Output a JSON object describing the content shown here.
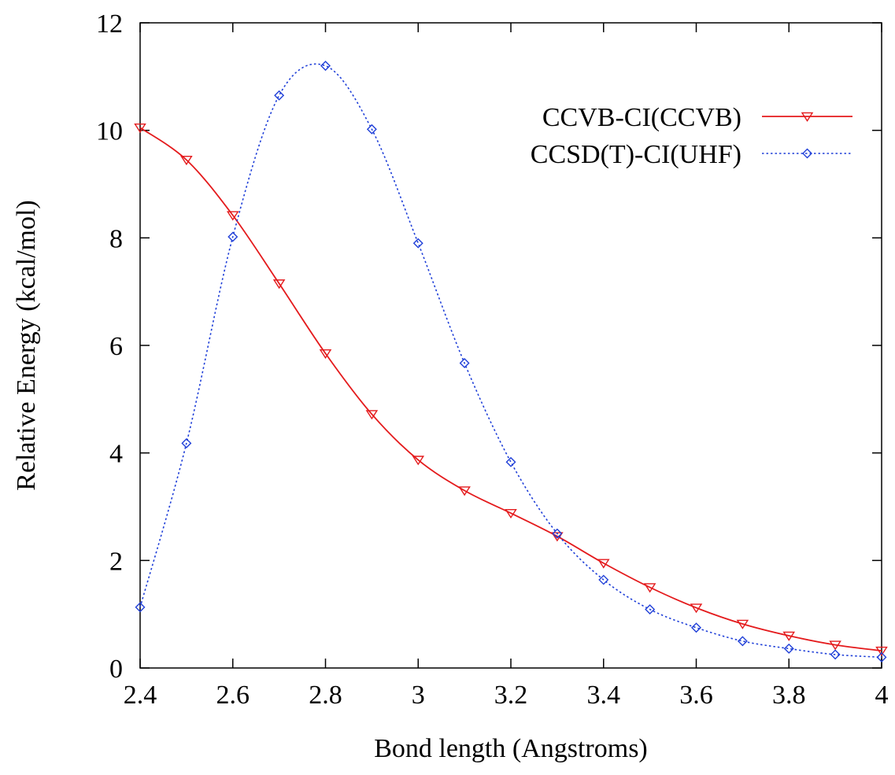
{
  "chart_data": {
    "type": "line",
    "title": "",
    "xlabel": "Bond length (Angstroms)",
    "ylabel": "Relative Energy (kcal/mol)",
    "xlim": [
      2.4,
      4.0
    ],
    "ylim": [
      0,
      12
    ],
    "xticks": [
      "2.4",
      "2.6",
      "2.8",
      "3",
      "3.2",
      "3.4",
      "3.6",
      "3.8",
      "4"
    ],
    "xtick_values": [
      2.4,
      2.6,
      2.8,
      3.0,
      3.2,
      3.4,
      3.6,
      3.8,
      4.0
    ],
    "yticks": [
      "0",
      "2",
      "4",
      "6",
      "8",
      "10",
      "12"
    ],
    "ytick_values": [
      0,
      2,
      4,
      6,
      8,
      10,
      12
    ],
    "grid": false,
    "legend_position": "top-right",
    "x": [
      2.4,
      2.5,
      2.6,
      2.7,
      2.8,
      2.9,
      3.0,
      3.1,
      3.2,
      3.3,
      3.4,
      3.5,
      3.6,
      3.7,
      3.8,
      3.9,
      4.0
    ],
    "series": [
      {
        "name": "CCVB-CI(CCVB)",
        "color": "#e41a1c",
        "line_style": "solid",
        "marker": "triangle-down",
        "values": [
          10.05,
          9.45,
          8.42,
          7.15,
          5.85,
          4.72,
          3.87,
          3.3,
          2.88,
          2.45,
          1.95,
          1.5,
          1.12,
          0.82,
          0.6,
          0.43,
          0.32
        ]
      },
      {
        "name": "CCSD(T)-CI(UHF)",
        "color": "#1f3fd8",
        "line_style": "dotted",
        "marker": "diamond",
        "values": [
          1.13,
          4.18,
          8.02,
          10.65,
          11.2,
          10.02,
          7.9,
          5.67,
          3.83,
          2.5,
          1.64,
          1.09,
          0.75,
          0.5,
          0.36,
          0.25,
          0.2
        ]
      }
    ]
  }
}
